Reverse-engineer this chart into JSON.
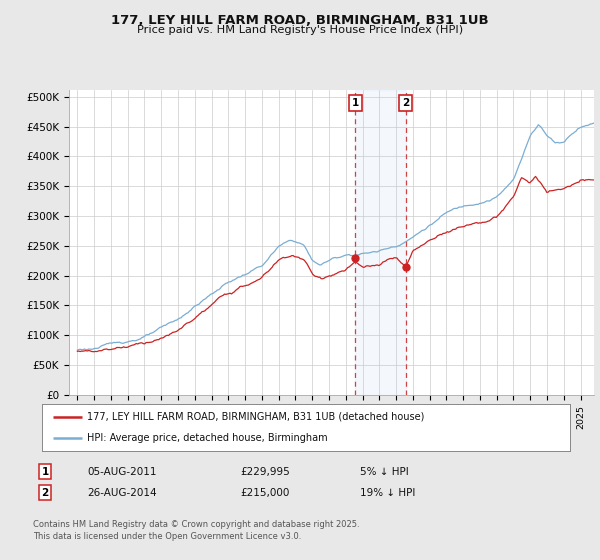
{
  "title": "177, LEY HILL FARM ROAD, BIRMINGHAM, B31 1UB",
  "subtitle": "Price paid vs. HM Land Registry's House Price Index (HPI)",
  "ylabel_ticks": [
    "£0",
    "£50K",
    "£100K",
    "£150K",
    "£200K",
    "£250K",
    "£300K",
    "£350K",
    "£400K",
    "£450K",
    "£500K"
  ],
  "ytick_vals": [
    0,
    50000,
    100000,
    150000,
    200000,
    250000,
    300000,
    350000,
    400000,
    450000,
    500000
  ],
  "ylim": [
    0,
    512000
  ],
  "hpi_color": "#7aadd4",
  "price_color": "#cc2222",
  "sale1_date": "05-AUG-2011",
  "sale1_price": "£229,995",
  "sale1_hpi_pct": "5% ↓ HPI",
  "sale2_date": "26-AUG-2014",
  "sale2_price": "£215,000",
  "sale2_hpi_pct": "19% ↓ HPI",
  "legend_label1": "177, LEY HILL FARM ROAD, BIRMINGHAM, B31 1UB (detached house)",
  "legend_label2": "HPI: Average price, detached house, Birmingham",
  "footnote": "Contains HM Land Registry data © Crown copyright and database right 2025.\nThis data is licensed under the Open Government Licence v3.0.",
  "background_color": "#e8e8e8",
  "plot_bg_color": "#ffffff",
  "grid_color": "#cccccc",
  "xmin": 1994.5,
  "xmax": 2025.8,
  "sale1_x": 2011.58,
  "sale2_x": 2014.58,
  "sale1_y": 229995,
  "sale2_y": 215000
}
